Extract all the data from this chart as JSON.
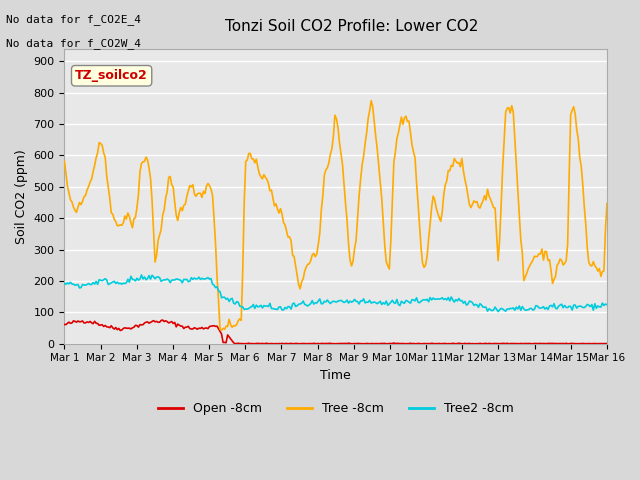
{
  "title": "Tonzi Soil CO2 Profile: Lower CO2",
  "ylabel": "Soil CO2 (ppm)",
  "xlabel": "Time",
  "top_text": [
    "No data for f_CO2E_4",
    "No data for f_CO2W_4"
  ],
  "box_label": "TZ_soilco2",
  "ylim": [
    0,
    940
  ],
  "yticks": [
    0,
    100,
    200,
    300,
    400,
    500,
    600,
    700,
    800,
    900
  ],
  "xtick_labels": [
    "Mar 1",
    "Mar 2",
    "Mar 3",
    "Mar 4",
    "Mar 5",
    "Mar 6",
    "Mar 7",
    "Mar 8",
    "Mar 9",
    "Mar 10",
    "Mar 11",
    "Mar 12",
    "Mar 13",
    "Mar 14",
    "Mar 15",
    "Mar 16"
  ],
  "legend_entries": [
    "Open -8cm",
    "Tree -8cm",
    "Tree2 -8cm"
  ],
  "line_colors": [
    "#dd0000",
    "#ffaa00",
    "#00ccdd"
  ],
  "plot_bg": "#e8e8e8",
  "fig_bg": "#d8d8d8",
  "tree_x": [
    0.0,
    0.1,
    0.3,
    0.5,
    0.7,
    0.9,
    1.0,
    1.1,
    1.3,
    1.5,
    1.7,
    1.9,
    2.0,
    2.1,
    2.3,
    2.4,
    2.5,
    2.7,
    2.9,
    3.0,
    3.1,
    3.3,
    3.5,
    3.7,
    3.9,
    4.0,
    4.1,
    4.3,
    4.4,
    4.5,
    4.7,
    4.9,
    5.0,
    5.2,
    5.4,
    5.6,
    5.8,
    6.0,
    6.2,
    6.4,
    6.5,
    6.7,
    6.9,
    7.0,
    7.2,
    7.4,
    7.5,
    7.7,
    7.9,
    8.0,
    8.2,
    8.4,
    8.5,
    8.7,
    8.9,
    9.0,
    9.1,
    9.3,
    9.5,
    9.7,
    9.9,
    10.0,
    10.2,
    10.4,
    10.5,
    10.7,
    10.9,
    11.0,
    11.2,
    11.4,
    11.5,
    11.7,
    11.9,
    12.0,
    12.2,
    12.4,
    12.5,
    12.7,
    12.9,
    13.0,
    13.2,
    13.4,
    13.5,
    13.7,
    13.9,
    14.0,
    14.1,
    14.3,
    14.5,
    14.7,
    14.9,
    15.0
  ],
  "tree_y": [
    570,
    490,
    420,
    450,
    510,
    590,
    645,
    600,
    430,
    360,
    410,
    380,
    415,
    570,
    595,
    510,
    265,
    385,
    525,
    500,
    390,
    450,
    500,
    475,
    490,
    515,
    480,
    50,
    50,
    65,
    55,
    80,
    600,
    590,
    540,
    535,
    440,
    415,
    345,
    250,
    175,
    250,
    285,
    285,
    550,
    620,
    750,
    560,
    255,
    260,
    540,
    710,
    785,
    560,
    250,
    255,
    575,
    715,
    720,
    570,
    250,
    250,
    480,
    380,
    480,
    580,
    575,
    570,
    440,
    440,
    440,
    480,
    440,
    260,
    750,
    760,
    545,
    200,
    260,
    280,
    290,
    280,
    200,
    260,
    260,
    745,
    750,
    550,
    250,
    255,
    210,
    445
  ],
  "tree2_x": [
    0.0,
    0.5,
    1.0,
    1.5,
    2.0,
    2.5,
    3.0,
    3.5,
    4.0,
    4.4,
    4.7,
    5.0,
    5.5,
    6.0,
    6.5,
    7.0,
    7.5,
    8.0,
    8.5,
    9.0,
    9.5,
    10.0,
    10.5,
    11.0,
    11.5,
    12.0,
    12.5,
    13.0,
    13.5,
    14.0,
    14.5,
    15.0
  ],
  "tree2_y": [
    193,
    185,
    200,
    195,
    205,
    210,
    200,
    205,
    210,
    145,
    130,
    115,
    120,
    110,
    125,
    130,
    130,
    135,
    130,
    130,
    135,
    140,
    140,
    140,
    120,
    105,
    110,
    110,
    120,
    115,
    120,
    125
  ]
}
